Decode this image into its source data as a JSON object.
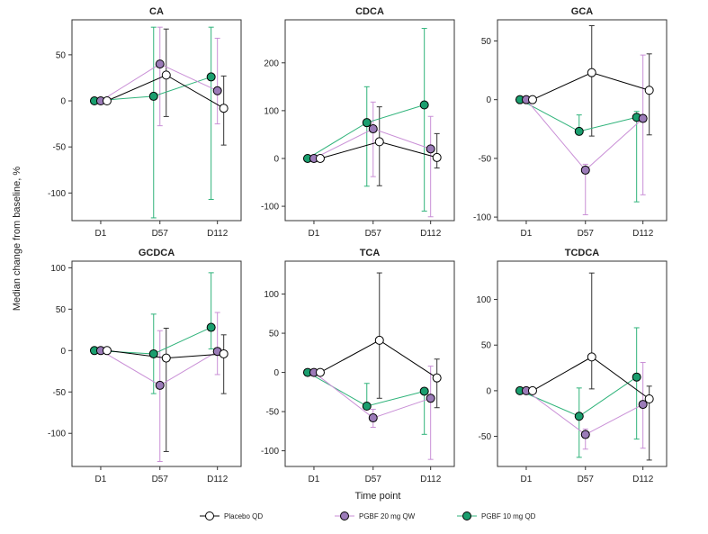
{
  "figure": {
    "ylabel": "Median change from baseline, %",
    "xlabel": "Time point"
  },
  "legend": {
    "placement": "bottom",
    "items": [
      {
        "label": "Placebo QD",
        "color": "#ffffff",
        "stroke": "#000000"
      },
      {
        "label": "PGBF 20 mg QW",
        "color": "#9b7bb8",
        "stroke": "#000000"
      },
      {
        "label": "PGBF 10 mg QD",
        "color": "#1a9e6e",
        "stroke": "#000000"
      }
    ]
  },
  "series_colors": {
    "placebo_line": "#000000",
    "pgbf20_line": "#c98fd6",
    "pgbf10_line": "#2fb37a"
  },
  "chart_data": [
    {
      "type": "line",
      "title": "CA",
      "categories": [
        "D1",
        "D57",
        "D112"
      ],
      "yticks": [
        -100,
        -50,
        0,
        50
      ],
      "ylim": [
        -130,
        88
      ],
      "series": [
        {
          "name": "Placebo QD",
          "values": [
            0,
            28,
            -8
          ],
          "err_low": [
            0,
            -17,
            -48
          ],
          "err_high": [
            0,
            78,
            27
          ]
        },
        {
          "name": "PGBF 20 mg QW",
          "values": [
            0,
            40,
            11
          ],
          "err_low": [
            0,
            -27,
            -25
          ],
          "err_high": [
            0,
            80,
            68
          ]
        },
        {
          "name": "PGBF 10 mg QD",
          "values": [
            0,
            5,
            26
          ],
          "err_low": [
            0,
            -127,
            -107
          ],
          "err_high": [
            0,
            80,
            80
          ]
        }
      ]
    },
    {
      "type": "line",
      "title": "CDCA",
      "categories": [
        "D1",
        "D57",
        "D112"
      ],
      "yticks": [
        -100,
        0,
        100,
        200
      ],
      "ylim": [
        -130,
        290
      ],
      "series": [
        {
          "name": "Placebo QD",
          "values": [
            0,
            35,
            2
          ],
          "err_low": [
            0,
            -57,
            -20
          ],
          "err_high": [
            0,
            108,
            52
          ]
        },
        {
          "name": "PGBF 20 mg QW",
          "values": [
            0,
            62,
            20
          ],
          "err_low": [
            0,
            -38,
            -122
          ],
          "err_high": [
            0,
            118,
            88
          ]
        },
        {
          "name": "PGBF 10 mg QD",
          "values": [
            0,
            75,
            112
          ],
          "err_low": [
            0,
            -58,
            -110
          ],
          "err_high": [
            0,
            150,
            272
          ]
        }
      ]
    },
    {
      "type": "line",
      "title": "GCA",
      "categories": [
        "D1",
        "D57",
        "D112"
      ],
      "yticks": [
        -100,
        -50,
        0,
        50
      ],
      "ylim": [
        -103,
        68
      ],
      "series": [
        {
          "name": "Placebo QD",
          "values": [
            0,
            23,
            8
          ],
          "err_low": [
            0,
            -31,
            -30
          ],
          "err_high": [
            0,
            63,
            39
          ]
        },
        {
          "name": "PGBF 20 mg QW",
          "values": [
            0,
            -60,
            -16
          ],
          "err_low": [
            0,
            -98,
            -81
          ],
          "err_high": [
            0,
            -55,
            38
          ]
        },
        {
          "name": "PGBF 10 mg QD",
          "values": [
            0,
            -27,
            -15
          ],
          "err_low": [
            0,
            -30,
            -87
          ],
          "err_high": [
            0,
            -13,
            -10
          ]
        }
      ]
    },
    {
      "type": "line",
      "title": "GCDCA",
      "categories": [
        "D1",
        "D57",
        "D112"
      ],
      "yticks": [
        -100,
        -50,
        0,
        50,
        100
      ],
      "ylim": [
        -140,
        108
      ],
      "series": [
        {
          "name": "Placebo QD",
          "values": [
            0,
            -9,
            -4
          ],
          "err_low": [
            0,
            -122,
            -52
          ],
          "err_high": [
            0,
            27,
            19
          ]
        },
        {
          "name": "PGBF 20 mg QW",
          "values": [
            0,
            -42,
            -1
          ],
          "err_low": [
            0,
            -134,
            -29
          ],
          "err_high": [
            0,
            24,
            46
          ]
        },
        {
          "name": "PGBF 10 mg QD",
          "values": [
            0,
            -4,
            28
          ],
          "err_low": [
            0,
            -52,
            2
          ],
          "err_high": [
            0,
            44,
            94
          ]
        }
      ]
    },
    {
      "type": "line",
      "title": "TCA",
      "categories": [
        "D1",
        "D57",
        "D112"
      ],
      "yticks": [
        -100,
        -50,
        0,
        50,
        100
      ],
      "ylim": [
        -120,
        142
      ],
      "series": [
        {
          "name": "Placebo QD",
          "values": [
            0,
            41,
            -7
          ],
          "err_low": [
            0,
            -33,
            -45
          ],
          "err_high": [
            0,
            127,
            17
          ]
        },
        {
          "name": "PGBF 20 mg QW",
          "values": [
            0,
            -58,
            -33
          ],
          "err_low": [
            0,
            -70,
            -111
          ],
          "err_high": [
            0,
            -47,
            8
          ]
        },
        {
          "name": "PGBF 10 mg QD",
          "values": [
            0,
            -43,
            -24
          ],
          "err_low": [
            0,
            -47,
            -79
          ],
          "err_high": [
            0,
            -14,
            -20
          ]
        }
      ]
    },
    {
      "type": "line",
      "title": "TCDCA",
      "categories": [
        "D1",
        "D57",
        "D112"
      ],
      "yticks": [
        -50,
        0,
        50,
        100
      ],
      "ylim": [
        -83,
        142
      ],
      "series": [
        {
          "name": "Placebo QD",
          "values": [
            0,
            37,
            -9
          ],
          "err_low": [
            0,
            2,
            -76
          ],
          "err_high": [
            0,
            129,
            5
          ]
        },
        {
          "name": "PGBF 20 mg QW",
          "values": [
            0,
            -48,
            -15
          ],
          "err_low": [
            0,
            -64,
            -63
          ],
          "err_high": [
            0,
            -42,
            31
          ]
        },
        {
          "name": "PGBF 10 mg QD",
          "values": [
            0,
            -28,
            15
          ],
          "err_low": [
            0,
            -73,
            -53
          ],
          "err_high": [
            0,
            3,
            69
          ]
        }
      ]
    }
  ]
}
